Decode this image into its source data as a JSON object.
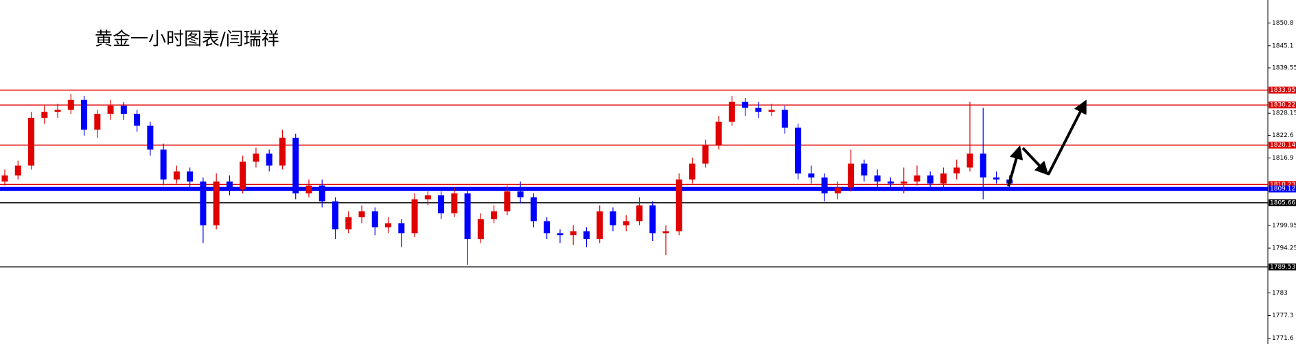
{
  "chart_data": {
    "type": "candlestick",
    "title": "黄金一小时图表/闫瑞祥",
    "up_color": "#e00000",
    "down_color": "#0000ff",
    "ylim": [
      1770.16,
      1856.6
    ],
    "yticks": [
      1850.8,
      1845.1,
      1839.55,
      1828.15,
      1822.6,
      1816.9,
      1799.95,
      1794.25,
      1783.0,
      1777.3,
      1771.6
    ],
    "levels": [
      {
        "value": 1833.95,
        "color": "#e00000",
        "line_width": 1.5
      },
      {
        "value": 1830.22,
        "color": "#e00000",
        "line_width": 1.5
      },
      {
        "value": 1820.14,
        "color": "#e00000",
        "line_width": 1.5
      },
      {
        "value": 1810.23,
        "color": "#e00000",
        "line_width": 1.5
      },
      {
        "value": 1809.12,
        "color": "#0000ff",
        "line_width": 6
      },
      {
        "value": 1805.66,
        "color": "#000000",
        "line_width": 1.5
      },
      {
        "value": 1789.53,
        "color": "#000000",
        "line_width": 1.5
      }
    ],
    "candles": [
      [
        1811,
        1814,
        1810,
        1812.5
      ],
      [
        1812.5,
        1816.2,
        1811.5,
        1815
      ],
      [
        1815,
        1828.5,
        1814,
        1827
      ],
      [
        1827,
        1830,
        1825.5,
        1828.5
      ],
      [
        1828.5,
        1830.5,
        1827,
        1829
      ],
      [
        1829,
        1833,
        1828,
        1831.5
      ],
      [
        1831.5,
        1832.5,
        1822.5,
        1824
      ],
      [
        1824,
        1829,
        1822,
        1828
      ],
      [
        1828,
        1831.5,
        1826.5,
        1830
      ],
      [
        1830,
        1831,
        1826.5,
        1828
      ],
      [
        1828,
        1829,
        1823.5,
        1825
      ],
      [
        1825,
        1826,
        1817.5,
        1819
      ],
      [
        1819,
        1820.5,
        1810,
        1811.5
      ],
      [
        1811.5,
        1815,
        1810.5,
        1813.5
      ],
      [
        1813.5,
        1814.5,
        1809,
        1811
      ],
      [
        1811,
        1812,
        1795.5,
        1800
      ],
      [
        1800,
        1813,
        1799,
        1811
      ],
      [
        1811,
        1812.5,
        1807.5,
        1809
      ],
      [
        1809,
        1817.5,
        1808,
        1816
      ],
      [
        1816,
        1819.5,
        1814.5,
        1818
      ],
      [
        1818,
        1819,
        1813.5,
        1815
      ],
      [
        1815,
        1824,
        1814,
        1822
      ],
      [
        1822,
        1823,
        1806.5,
        1808
      ],
      [
        1808,
        1811.5,
        1807,
        1810
      ],
      [
        1810,
        1811.5,
        1804.5,
        1806
      ],
      [
        1806,
        1807,
        1796.5,
        1799
      ],
      [
        1799,
        1803.5,
        1798,
        1802
      ],
      [
        1802,
        1805,
        1800.5,
        1803.5
      ],
      [
        1803.5,
        1804.5,
        1797.5,
        1799.5
      ],
      [
        1799.5,
        1802,
        1798,
        1800.5
      ],
      [
        1800.5,
        1801.5,
        1794.5,
        1798
      ],
      [
        1798,
        1808,
        1797,
        1806.5
      ],
      [
        1806.5,
        1808.5,
        1805,
        1807.5
      ],
      [
        1807.5,
        1808.5,
        1801.5,
        1803
      ],
      [
        1803,
        1809.5,
        1802,
        1808
      ],
      [
        1808,
        1809,
        1790,
        1796.5
      ],
      [
        1796.5,
        1803,
        1795.5,
        1801.5
      ],
      [
        1801.5,
        1805,
        1800.5,
        1803.5
      ],
      [
        1803.5,
        1810,
        1802.5,
        1808.5
      ],
      [
        1808.5,
        1811,
        1805.5,
        1807
      ],
      [
        1807,
        1808,
        1799.5,
        1801
      ],
      [
        1801,
        1802,
        1796.5,
        1798
      ],
      [
        1798,
        1799,
        1795.5,
        1797.5
      ],
      [
        1797.5,
        1800,
        1795,
        1798.5
      ],
      [
        1798.5,
        1799.5,
        1794.5,
        1796.5
      ],
      [
        1796.5,
        1805,
        1795.5,
        1803.5
      ],
      [
        1803.5,
        1804.5,
        1798.5,
        1800
      ],
      [
        1800,
        1802.5,
        1798.5,
        1801
      ],
      [
        1801,
        1807,
        1800,
        1805
      ],
      [
        1805,
        1806,
        1796,
        1798
      ],
      [
        1798,
        1800,
        1792.5,
        1798.5
      ],
      [
        1798.5,
        1813,
        1797.5,
        1811.5
      ],
      [
        1811.5,
        1817,
        1810.5,
        1815.5
      ],
      [
        1815.5,
        1821.5,
        1814.5,
        1820
      ],
      [
        1820,
        1827.5,
        1819,
        1826
      ],
      [
        1826,
        1832.5,
        1825,
        1831
      ],
      [
        1831,
        1832,
        1827.5,
        1829.5
      ],
      [
        1829.5,
        1831,
        1827,
        1828.5
      ],
      [
        1828.5,
        1830.5,
        1827.5,
        1829
      ],
      [
        1829,
        1830,
        1823,
        1824.5
      ],
      [
        1824.5,
        1825.5,
        1811.5,
        1813
      ],
      [
        1813,
        1815,
        1810.5,
        1812
      ],
      [
        1812,
        1813,
        1806,
        1808
      ],
      [
        1808,
        1811,
        1806.5,
        1809.5
      ],
      [
        1809.5,
        1819,
        1808.5,
        1815.5
      ],
      [
        1815.5,
        1816.5,
        1811,
        1812.5
      ],
      [
        1812.5,
        1814,
        1809.5,
        1811
      ],
      [
        1811,
        1812,
        1809,
        1810.5
      ],
      [
        1810.5,
        1814.5,
        1808,
        1811
      ],
      [
        1811,
        1815,
        1810,
        1812.5
      ],
      [
        1812.5,
        1813.5,
        1809,
        1810.5
      ],
      [
        1810.5,
        1814.5,
        1809.5,
        1813
      ],
      [
        1813,
        1816.5,
        1811.5,
        1814.5
      ],
      [
        1814.5,
        1831,
        1813.5,
        1818
      ],
      [
        1818,
        1829.5,
        1806.5,
        1812
      ],
      [
        1812,
        1813.5,
        1810.5,
        1811.5
      ],
      [
        1811.5,
        1812.5,
        1809.5,
        1810.5
      ]
    ]
  }
}
